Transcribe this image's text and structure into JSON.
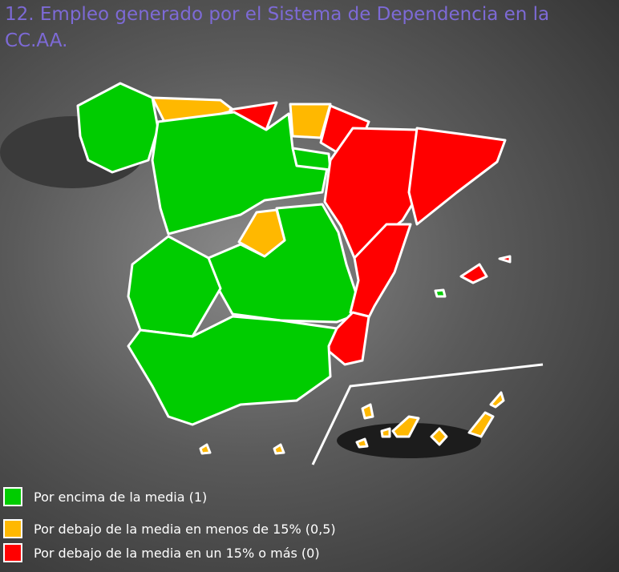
{
  "title": "12. Empleo generado por el Sistema de Dependencia en la CC.AA.",
  "legend": [
    {
      "label": "Por encima de la media (1)",
      "color": "#00cc00"
    },
    {
      "label": "Por debajo de la media en menos de 15% (0,5)",
      "color": "#ffb800"
    },
    {
      "label": "Por debajo de la media en un 15% o más (0)",
      "color": "#ff0000"
    }
  ]
}
